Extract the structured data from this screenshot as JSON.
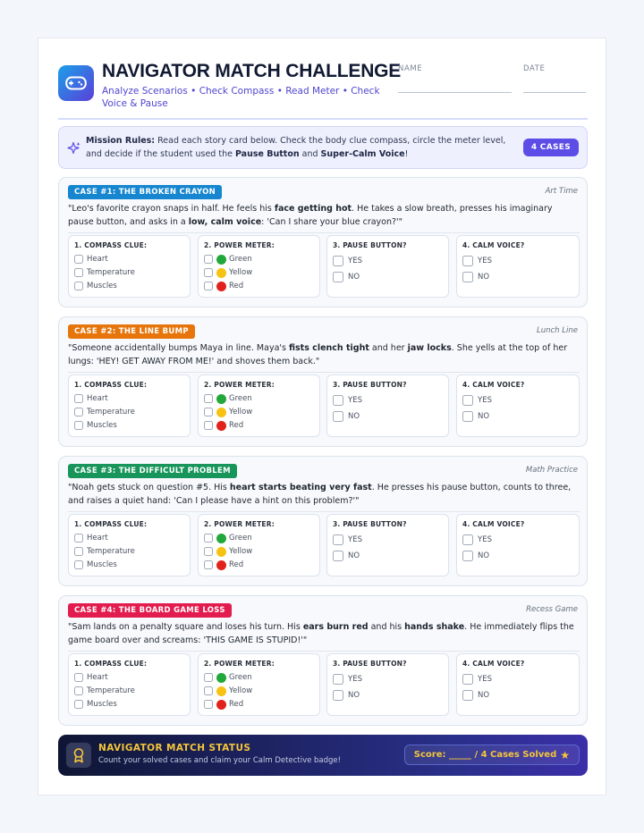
{
  "header": {
    "title": "NAVIGATOR MATCH CHALLENGE",
    "subtitle": "Analyze Scenarios • Check Compass • Read Meter • Check Voice & Pause",
    "name_label": "NAME",
    "date_label": "DATE",
    "logo_icon": "gamepad-icon"
  },
  "rules": {
    "lead": "Mission Rules:",
    "text1": " Read each story card below. Check the body clue compass, circle the meter level, and decide if the student used the ",
    "pause": "Pause Button",
    "and": " and ",
    "calm": "Super-Calm Voice",
    "end": "!",
    "badge": "4 CASES"
  },
  "questions": {
    "compass": "1. COMPASS CLUE:",
    "meter": "2. POWER METER:",
    "pause": "3. PAUSE BUTTON?",
    "voice": "4. CALM VOICE?",
    "compass_options": [
      "Heart",
      "Temperature",
      "Muscles"
    ],
    "meter_options": [
      "Green",
      "Yellow",
      "Red"
    ],
    "yes": "YES",
    "no": "NO"
  },
  "colors": {
    "case1": "#1586cf",
    "case2": "#e6750c",
    "case3": "#17955a",
    "case4": "#e21c4f",
    "meter_green": "#22a83a",
    "meter_yellow": "#f6c313",
    "meter_red": "#e1211b"
  },
  "cases": [
    {
      "tag": "CASE #1: THE BROKEN CRAYON",
      "setting": "Art Time",
      "s1": "\"Leo's favorite crayon snaps in half. He feels his ",
      "b1": "face getting hot",
      "s2": ". He takes a slow breath, presses his imaginary pause button, and asks in a ",
      "b2": "low, calm voice",
      "s3": ": 'Can I share your blue crayon?'\""
    },
    {
      "tag": "CASE #2: THE LINE BUMP",
      "setting": "Lunch Line",
      "s1": "\"Someone accidentally bumps Maya in line. Maya's ",
      "b1": "fists clench tight",
      "s2": " and her ",
      "b2": "jaw locks",
      "s3": ". She yells at the top of her lungs: 'HEY! GET AWAY FROM ME!' and shoves them back.\""
    },
    {
      "tag": "CASE #3: THE DIFFICULT PROBLEM",
      "setting": "Math Practice",
      "s1": "\"Noah gets stuck on question #5. His ",
      "b1": "heart starts beating very fast",
      "s2": ". He presses his pause button, counts to three, and raises a quiet hand: 'Can I please have a hint on this problem?'\"",
      "b2": "",
      "s3": ""
    },
    {
      "tag": "CASE #4: THE BOARD GAME LOSS",
      "setting": "Recess Game",
      "s1": "\"Sam lands on a penalty square and loses his turn. His ",
      "b1": "ears burn red",
      "s2": " and his ",
      "b2": "hands shake",
      "s3": ". He immediately flips the game board over and screams: 'THIS GAME IS STUPID!'\""
    }
  ],
  "footer": {
    "title": "NAVIGATOR MATCH STATUS",
    "subtitle": "Count your solved cases and claim your Calm Detective badge!",
    "score": "Score: _____ / 4 Cases Solved",
    "star": "★",
    "medal_icon": "medal-icon"
  }
}
